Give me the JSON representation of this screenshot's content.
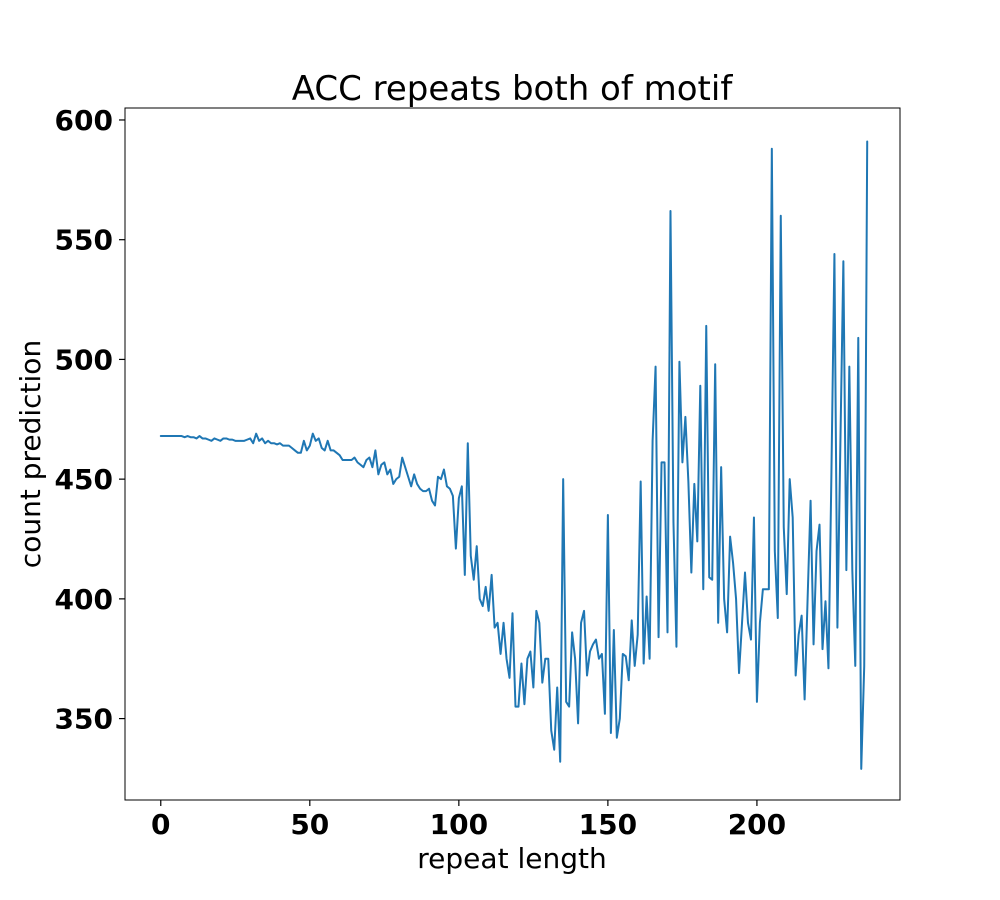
{
  "chart_data": {
    "type": "line",
    "title": "ACC repeats both of motif",
    "xlabel": "repeat length",
    "ylabel": "count prediction",
    "xlim": [
      -12,
      248
    ],
    "ylim": [
      316,
      605
    ],
    "xticks": [
      0,
      50,
      100,
      150,
      200
    ],
    "yticks": [
      350,
      400,
      450,
      500,
      550,
      600
    ],
    "grid": false,
    "legend": "none",
    "series_color": "#1f77b4",
    "x_start": 0,
    "x_step": 1,
    "values": [
      468,
      468,
      468,
      468,
      468,
      468,
      468,
      468,
      467.5,
      468,
      467.5,
      467.5,
      467,
      468,
      467,
      467,
      466.5,
      466,
      467,
      466.5,
      466,
      467,
      467,
      466.5,
      466.5,
      466,
      466,
      466,
      466,
      466.5,
      467,
      465,
      469,
      466,
      467,
      465,
      466,
      465,
      465,
      464.5,
      465,
      464,
      464,
      464,
      463,
      462,
      461,
      461,
      466,
      462,
      464,
      469,
      466,
      467,
      463,
      462,
      466,
      462,
      462,
      461,
      460,
      458,
      458,
      458,
      458,
      459,
      457,
      456,
      455,
      458,
      459,
      455,
      462,
      452,
      456,
      457,
      452,
      454,
      448,
      450,
      451,
      459,
      455,
      451,
      447,
      452,
      448,
      446,
      445,
      445,
      446,
      441,
      439,
      451,
      450,
      454,
      447,
      446,
      443,
      421,
      442,
      447,
      410,
      465,
      418,
      408,
      422,
      400,
      397,
      405,
      395,
      410,
      388,
      390,
      377,
      390,
      375,
      367,
      394,
      355,
      355,
      373,
      356,
      375,
      378,
      363,
      395,
      390,
      365,
      375,
      375,
      345,
      337,
      363,
      332,
      450,
      357,
      355,
      386,
      375,
      348,
      390,
      395,
      368,
      378,
      381,
      383,
      375,
      377,
      352,
      435,
      344,
      387,
      342,
      350,
      377,
      376,
      366,
      391,
      372,
      385,
      449,
      373,
      401,
      375,
      466,
      497,
      384,
      457,
      457,
      386,
      562,
      432,
      380,
      499,
      457,
      476,
      449,
      411,
      448,
      424,
      489,
      404,
      514,
      409,
      408,
      498,
      390,
      455,
      400,
      386,
      426,
      415,
      400,
      369,
      390,
      411,
      390,
      383,
      434,
      357,
      390,
      404,
      404,
      404,
      588,
      420,
      392,
      560,
      430,
      402,
      450,
      434,
      368,
      385,
      393,
      358,
      400,
      441,
      381,
      420,
      431,
      379,
      399,
      371,
      453,
      544,
      388,
      465,
      541,
      412,
      497,
      412,
      372,
      509,
      329,
      372,
      591
    ]
  }
}
